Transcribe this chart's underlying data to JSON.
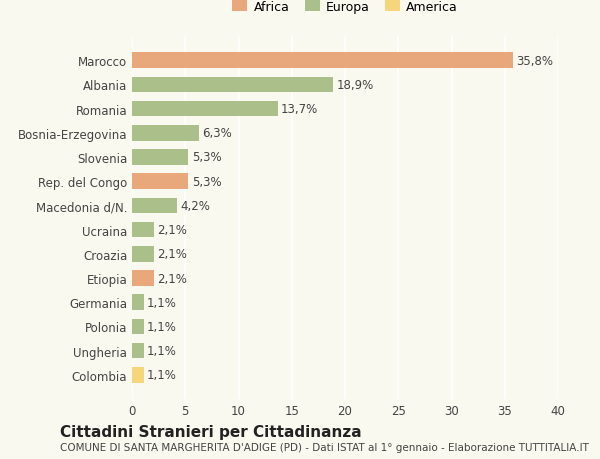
{
  "categories": [
    "Marocco",
    "Albania",
    "Romania",
    "Bosnia-Erzegovina",
    "Slovenia",
    "Rep. del Congo",
    "Macedonia d/N.",
    "Ucraina",
    "Croazia",
    "Etiopia",
    "Germania",
    "Polonia",
    "Ungheria",
    "Colombia"
  ],
  "values": [
    35.8,
    18.9,
    13.7,
    6.3,
    5.3,
    5.3,
    4.2,
    2.1,
    2.1,
    2.1,
    1.1,
    1.1,
    1.1,
    1.1
  ],
  "continents": [
    "Africa",
    "Europa",
    "Europa",
    "Europa",
    "Europa",
    "Africa",
    "Europa",
    "Europa",
    "Europa",
    "Africa",
    "Europa",
    "Europa",
    "Europa",
    "America"
  ],
  "colors": {
    "Africa": "#E8A87C",
    "Europa": "#AABF8A",
    "America": "#F5D67B"
  },
  "xlim": [
    0,
    40
  ],
  "xticks": [
    0,
    5,
    10,
    15,
    20,
    25,
    30,
    35,
    40
  ],
  "title": "Cittadini Stranieri per Cittadinanza",
  "subtitle": "COMUNE DI SANTA MARGHERITA D'ADIGE (PD) - Dati ISTAT al 1° gennaio - Elaborazione TUTTITALIA.IT",
  "background_color": "#f9f9f0",
  "grid_color": "#ffffff",
  "bar_height": 0.65,
  "label_fontsize": 8.5,
  "tick_fontsize": 8.5,
  "title_fontsize": 11,
  "subtitle_fontsize": 7.5,
  "legend_order": [
    "Africa",
    "Europa",
    "America"
  ]
}
